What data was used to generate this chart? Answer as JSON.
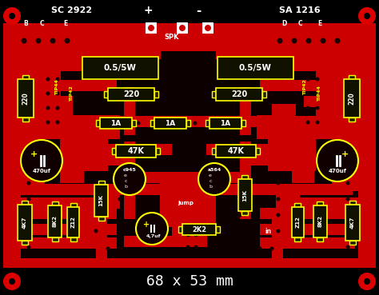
{
  "bg_color": "#000000",
  "pcb_red": "#cc0000",
  "dark_red": "#880000",
  "yellow": "#ffff00",
  "white": "#ffffff",
  "black": "#000000",
  "dark_bg": "#0d0000",
  "title": "68 x 53 mm",
  "label_tl": "SC 2922",
  "label_tr": "SA 1216",
  "figsize": [
    4.74,
    3.69
  ],
  "dpi": 100
}
